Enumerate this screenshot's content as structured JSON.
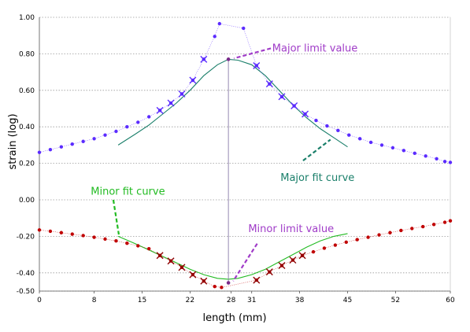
{
  "chart_data": {
    "type": "scatter",
    "xlabel": "length  (mm)",
    "ylabel": "strain (log)",
    "xlim": [
      0,
      60
    ],
    "ylim": [
      -0.5,
      1.0
    ],
    "x_ticks": [
      0,
      8,
      15,
      22,
      28,
      31,
      38,
      45,
      52,
      60
    ],
    "x_tick_labels": [
      "0",
      "8",
      "15",
      "22",
      "28",
      "31",
      "38",
      "45",
      "52",
      "60"
    ],
    "y_ticks": [
      -0.5,
      -0.4,
      -0.2,
      0.0,
      0.2,
      0.4,
      0.6,
      0.8,
      1.0
    ],
    "y_tick_labels": [
      "-0.50",
      "-0.40",
      "-0.20",
      "0.00",
      "0.20",
      "0.40",
      "0.60",
      "0.80",
      "1.00"
    ],
    "grid": "horizontal dotted",
    "limit_x": 27.6,
    "series": [
      {
        "kind": "points",
        "color": "#5b2bff",
        "x": [
          0,
          1.6,
          3.2,
          4.8,
          6.4,
          8,
          9.6,
          11.2,
          12.8,
          14.4,
          16,
          17.6,
          19.2,
          20.8,
          22.4,
          24,
          25.6,
          26.3,
          29.8,
          31.7,
          33.6,
          35.4,
          37.2,
          38.8,
          40.4,
          42,
          43.6,
          45.2,
          46.8,
          48.4,
          50,
          51.6,
          53.2,
          54.8,
          56.4,
          58,
          59.2,
          60
        ],
        "y": [
          0.26,
          0.275,
          0.29,
          0.305,
          0.32,
          0.335,
          0.355,
          0.375,
          0.4,
          0.425,
          0.455,
          0.49,
          0.53,
          0.58,
          0.655,
          0.77,
          0.895,
          0.965,
          0.94,
          0.735,
          0.635,
          0.565,
          0.515,
          0.47,
          0.435,
          0.405,
          0.38,
          0.355,
          0.335,
          0.315,
          0.3,
          0.285,
          0.27,
          0.255,
          0.24,
          0.225,
          0.21,
          0.205
        ]
      },
      {
        "kind": "points",
        "color": "#c00000",
        "x": [
          0,
          1.6,
          3.2,
          4.8,
          6.4,
          8,
          9.6,
          11.2,
          12.8,
          14.4,
          16,
          17.6,
          19.2,
          20.8,
          22.4,
          24,
          25.6,
          26.6,
          31.7,
          33.6,
          35.4,
          37,
          38.4,
          40,
          41.6,
          43.2,
          44.8,
          46.4,
          48,
          49.6,
          51.2,
          52.8,
          54.4,
          56,
          57.6,
          59.2,
          60
        ],
        "y": [
          -0.165,
          -0.172,
          -0.18,
          -0.188,
          -0.196,
          -0.205,
          -0.215,
          -0.225,
          -0.238,
          -0.252,
          -0.268,
          -0.305,
          -0.335,
          -0.37,
          -0.41,
          -0.445,
          -0.475,
          -0.48,
          -0.44,
          -0.395,
          -0.36,
          -0.33,
          -0.305,
          -0.285,
          -0.265,
          -0.248,
          -0.232,
          -0.218,
          -0.205,
          -0.192,
          -0.18,
          -0.168,
          -0.157,
          -0.147,
          -0.135,
          -0.123,
          -0.115
        ]
      },
      {
        "kind": "fit",
        "color": "#1a7f6a",
        "x": [
          11.5,
          14,
          16,
          18,
          20,
          22,
          24,
          26,
          27.6,
          29,
          31,
          33,
          35,
          37,
          39,
          41,
          43,
          45
        ],
        "y": [
          0.3,
          0.36,
          0.41,
          0.47,
          0.53,
          0.6,
          0.68,
          0.74,
          0.77,
          0.765,
          0.74,
          0.68,
          0.6,
          0.52,
          0.45,
          0.39,
          0.34,
          0.29
        ]
      },
      {
        "kind": "fit",
        "color": "#22bb22",
        "x": [
          11.5,
          14,
          16,
          18,
          20,
          22,
          24,
          26,
          27.6,
          29,
          31,
          33,
          35,
          37,
          39,
          41,
          43,
          45
        ],
        "y": [
          -0.2,
          -0.24,
          -0.275,
          -0.31,
          -0.345,
          -0.38,
          -0.41,
          -0.43,
          -0.435,
          -0.43,
          -0.41,
          -0.38,
          -0.34,
          -0.3,
          -0.26,
          -0.225,
          -0.2,
          -0.185
        ]
      }
    ],
    "major_crosses": {
      "color": "#5b2bff",
      "x": [
        17.6,
        19.2,
        20.8,
        22.4,
        24,
        31.7,
        33.6,
        35.4,
        37.2,
        38.8
      ],
      "y": [
        0.49,
        0.53,
        0.58,
        0.655,
        0.77,
        0.735,
        0.635,
        0.565,
        0.515,
        0.47
      ]
    },
    "minor_crosses": {
      "color": "#8b0000",
      "x": [
        17.6,
        19.2,
        20.8,
        22.4,
        24,
        31.7,
        33.6,
        35.4,
        37,
        38.4
      ],
      "y": [
        -0.305,
        -0.335,
        -0.37,
        -0.41,
        -0.445,
        -0.44,
        -0.395,
        -0.36,
        -0.33,
        -0.305
      ]
    },
    "limit_points": [
      {
        "x": 27.6,
        "y": 0.77
      },
      {
        "x": 27.6,
        "y": -0.455
      }
    ],
    "annotations": [
      {
        "text": "Major limit value",
        "color": "#a03cc8",
        "tx": 34,
        "ty": 0.83,
        "x1": 33.8,
        "y1": 0.83,
        "x2": 28.4,
        "y2": 0.775
      },
      {
        "text": "Major fit curve",
        "color": "#1a7f6a",
        "tx": 35.2,
        "ty": 0.12,
        "x1": 38.5,
        "y1": 0.215,
        "x2": 42.5,
        "y2": 0.33
      },
      {
        "text": "Minor fit curve",
        "color": "#22bb22",
        "tx": 7.5,
        "ty": 0.045,
        "x1": 10.8,
        "y1": 0.0,
        "x2": 11.6,
        "y2": -0.19
      },
      {
        "text": "Minor limit value",
        "color": "#a03cc8",
        "tx": 30.5,
        "ty": -0.16,
        "x1": 31.8,
        "y1": -0.24,
        "x2": 28.3,
        "y2": -0.445
      }
    ]
  }
}
